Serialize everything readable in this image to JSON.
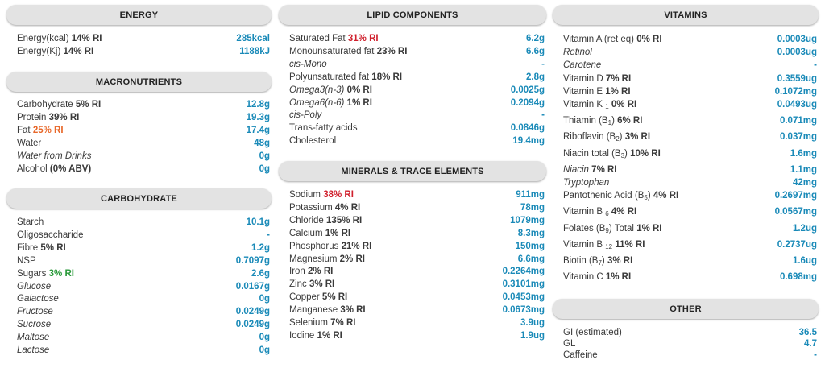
{
  "energy": {
    "title": "ENERGY",
    "rows": [
      {
        "label": "Energy(kcal)",
        "ri": "14% RI",
        "value": "285kcal"
      },
      {
        "label": "Energy(Kj)",
        "ri": "14% RI",
        "value": "1188kJ"
      }
    ]
  },
  "macronutrients": {
    "title": "MACRONUTRIENTS",
    "rows": [
      {
        "label": "Carbohydrate",
        "ri": "5% RI",
        "value": "12.8g"
      },
      {
        "label": "Protein",
        "ri": "39% RI",
        "value": "19.3g"
      },
      {
        "label": "Fat",
        "ri": "25% RI",
        "value": "17.4g"
      },
      {
        "label": "Water",
        "ri": "",
        "value": "48g"
      },
      {
        "label": "Water from Drinks",
        "ri": "",
        "value": "0g"
      },
      {
        "label": "Alcohol",
        "ri": "(0% ABV)",
        "value": "0g"
      }
    ]
  },
  "carbohydrate": {
    "title": "CARBOHYDRATE",
    "rows": [
      {
        "label": "Starch",
        "ri": "",
        "value": "10.1g"
      },
      {
        "label": "Oligosaccharide",
        "ri": "",
        "value": "-"
      },
      {
        "label": "Fibre",
        "ri": "5% RI",
        "value": "1.2g"
      },
      {
        "label": "NSP",
        "ri": "",
        "value": "0.7097g"
      },
      {
        "label": "Sugars",
        "ri": "3% RI",
        "value": "2.6g"
      },
      {
        "label": "Glucose",
        "ri": "",
        "value": "0.0167g"
      },
      {
        "label": "Galactose",
        "ri": "",
        "value": "0g"
      },
      {
        "label": "Fructose",
        "ri": "",
        "value": "0.0249g"
      },
      {
        "label": "Sucrose",
        "ri": "",
        "value": "0.0249g"
      },
      {
        "label": "Maltose",
        "ri": "",
        "value": "0g"
      },
      {
        "label": "Lactose",
        "ri": "",
        "value": "0g"
      }
    ]
  },
  "lipid": {
    "title": "LIPID COMPONENTS",
    "rows": [
      {
        "label": "Saturated Fat",
        "ri": "31% RI",
        "value": "6.2g"
      },
      {
        "label": "Monounsaturated fat",
        "ri": "23% RI",
        "value": "6.6g"
      },
      {
        "label": "cis-Mono",
        "ri": "",
        "value": "-"
      },
      {
        "label": "Polyunsaturated fat",
        "ri": "18% RI",
        "value": "2.8g"
      },
      {
        "label": "Omega3(n-3)",
        "ri": "0% RI",
        "value": "0.0025g"
      },
      {
        "label": "Omega6(n-6)",
        "ri": "1% RI",
        "value": "0.2094g"
      },
      {
        "label": "cis-Poly",
        "ri": "",
        "value": "-"
      },
      {
        "label": "Trans-fatty acids",
        "ri": "",
        "value": "0.0846g"
      },
      {
        "label": "Cholesterol",
        "ri": "",
        "value": "19.4mg"
      }
    ]
  },
  "minerals": {
    "title": "MINERALS & TRACE ELEMENTS",
    "rows": [
      {
        "label": "Sodium",
        "ri": "38% RI",
        "value": "911mg"
      },
      {
        "label": "Potassium",
        "ri": "4% RI",
        "value": "78mg"
      },
      {
        "label": "Chloride",
        "ri": "135% RI",
        "value": "1079mg"
      },
      {
        "label": "Calcium",
        "ri": "1% RI",
        "value": "8.3mg"
      },
      {
        "label": "Phosphorus",
        "ri": "21% RI",
        "value": "150mg"
      },
      {
        "label": "Magnesium",
        "ri": "2% RI",
        "value": "6.6mg"
      },
      {
        "label": "Iron",
        "ri": "2% RI",
        "value": "0.2264mg"
      },
      {
        "label": "Zinc",
        "ri": "3% RI",
        "value": "0.3101mg"
      },
      {
        "label": "Copper",
        "ri": "5% RI",
        "value": "0.0453mg"
      },
      {
        "label": "Manganese",
        "ri": "3% RI",
        "value": "0.0673mg"
      },
      {
        "label": "Selenium",
        "ri": "7% RI",
        "value": "3.9ug"
      },
      {
        "label": "Iodine",
        "ri": "1% RI",
        "value": "1.9ug"
      }
    ]
  },
  "vitamins": {
    "title": "VITAMINS",
    "rows": [
      {
        "label": "Vitamin A (ret eq)",
        "ri": "0% RI",
        "value": "0.0003ug"
      },
      {
        "label": "Retinol",
        "ri": "",
        "value": "0.0003ug"
      },
      {
        "label": "Carotene",
        "ri": "",
        "value": "-"
      },
      {
        "label": "Vitamin D",
        "ri": "7% RI",
        "value": "0.3559ug"
      },
      {
        "label": "Vitamin E",
        "ri": "1% RI",
        "value": "0.1072mg"
      },
      {
        "label": "Vitamin K",
        "sub": "1",
        "ri": "0% RI",
        "value": "0.0493ug"
      },
      {
        "label": "Thiamin (B",
        "sub": "1",
        "after": ")",
        "ri": "6% RI",
        "value": "0.071mg"
      },
      {
        "label": "Riboflavin (B",
        "sub": "2",
        "after": ")",
        "ri": "3% RI",
        "value": "0.037mg"
      },
      {
        "label": "Niacin total (B",
        "sub": "3",
        "after": ")",
        "ri": "10% RI",
        "value": "1.6mg"
      },
      {
        "label": "Niacin",
        "ri": "7% RI",
        "value": "1.1mg"
      },
      {
        "label": "Tryptophan",
        "ri": "",
        "value": "42mg"
      },
      {
        "label": "Pantothenic Acid (B",
        "sub": "5",
        "after": ")",
        "ri": "4% RI",
        "value": "0.2697mg"
      },
      {
        "label": "Vitamin B",
        "sub": "6",
        "ri": "4% RI",
        "value": "0.0567mg"
      },
      {
        "label": "Folates (B",
        "sub": "9",
        "after": ") Total",
        "ri": "1% RI",
        "value": "1.2ug"
      },
      {
        "label": "Vitamin B",
        "sub": "12",
        "ri": "11% RI",
        "value": "0.2737ug"
      },
      {
        "label": "Biotin (B",
        "sub": "7",
        "after": ")",
        "ri": "3% RI",
        "value": "1.6ug"
      },
      {
        "label": "Vitamin C",
        "ri": "1% RI",
        "value": "0.698mg"
      }
    ]
  },
  "other": {
    "title": "OTHER",
    "rows": [
      {
        "label": "GI (estimated)",
        "ri": "",
        "value": "36.5"
      },
      {
        "label": "GL",
        "ri": "",
        "value": "4.7"
      },
      {
        "label": "Caffeine",
        "ri": "",
        "value": "-"
      }
    ]
  }
}
